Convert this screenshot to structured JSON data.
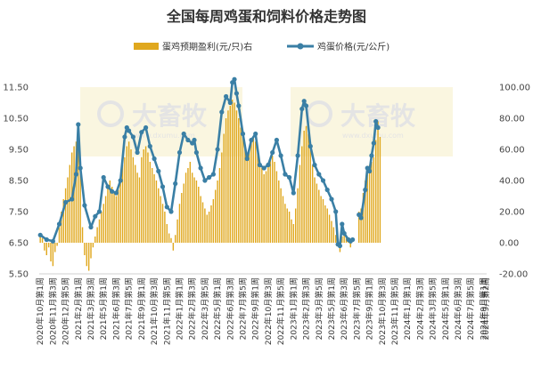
{
  "chart_data": {
    "type": "bar+line",
    "title": "全国每周鸡蛋和饲料价格走势图",
    "legend_position": "top",
    "watermark": "大畜牧 www.dxumu.com",
    "grid": false,
    "series": [
      {
        "name": "蛋鸡预期盈利(元/只)右",
        "type": "bar",
        "axis": "right",
        "color": "#E0A81E"
      },
      {
        "name": "鸡蛋价格(元/公斤)",
        "type": "line",
        "axis": "left",
        "color": "#3A7FA5"
      }
    ],
    "y_left": {
      "min": 5.5,
      "max": 11.5,
      "ticks": [
        "5.50",
        "6.50",
        "7.50",
        "8.50",
        "9.50",
        "10.50",
        "11.50"
      ]
    },
    "y_right": {
      "min": -20,
      "max": 100,
      "ticks": [
        "-20.00",
        "0.00",
        "20.00",
        "40.00",
        "60.00",
        "80.00",
        "100.00"
      ]
    },
    "x_tick_labels": [
      "2020年10月第1周",
      "2020年11月第3周",
      "2020年12月第5周",
      "2021年2月第1周",
      "2021年3月第3周",
      "2021年5月第1周",
      "2021年6月第3周",
      "2021年7月第5周",
      "2021年9月第1周",
      "2021年10月第3周",
      "2021年11月第5周",
      "2022年1月第1周",
      "2022年2月第3周",
      "2022年3月第5周",
      "2022年5月第1周",
      "2022年6月第3周",
      "2022年7月第5周",
      "2022年9月第1周",
      "2022年10月第3周",
      "2022年11月第5周",
      "2023年1月第1周",
      "2023年2月第3周",
      "2023年3月第5周",
      "2023年5月第1周",
      "2023年6月第3周",
      "2023年7月第5周",
      "2023年9月第1周",
      "2023年10月第3周",
      "2023年11月第5周",
      "2024年1月第1周",
      "2024年2月第3周",
      "2024年3月第5周",
      "2024年5月第1周",
      "2024年6月第3周",
      "2024年7月第5周",
      "2024年9月第1周",
      "2024年9月第2周"
    ],
    "x_tick_points": [
      0,
      6,
      12,
      18,
      24,
      30,
      36,
      42,
      48,
      54,
      60,
      66,
      72,
      78,
      84,
      90,
      96,
      102,
      108,
      114,
      120,
      126,
      132,
      138,
      144,
      150,
      156,
      162,
      168,
      174,
      180,
      186,
      192,
      198,
      204,
      210,
      211
    ],
    "egg_price": [
      [
        0,
        6.75
      ],
      [
        3,
        6.6
      ],
      [
        6,
        6.55
      ],
      [
        9,
        7.1
      ],
      [
        12,
        7.8
      ],
      [
        15,
        7.9
      ],
      [
        17,
        8.7
      ],
      [
        18,
        10.3
      ],
      [
        19,
        8.9
      ],
      [
        21,
        7.7
      ],
      [
        24,
        7.0
      ],
      [
        26,
        7.35
      ],
      [
        28,
        7.5
      ],
      [
        30,
        8.6
      ],
      [
        32,
        8.3
      ],
      [
        34,
        8.15
      ],
      [
        36,
        8.1
      ],
      [
        38,
        8.5
      ],
      [
        40,
        9.9
      ],
      [
        41,
        10.2
      ],
      [
        42,
        10.1
      ],
      [
        44,
        9.9
      ],
      [
        46,
        9.4
      ],
      [
        48,
        10.05
      ],
      [
        50,
        10.2
      ],
      [
        52,
        9.6
      ],
      [
        54,
        9.2
      ],
      [
        56,
        8.8
      ],
      [
        58,
        8.3
      ],
      [
        60,
        7.65
      ],
      [
        62,
        7.5
      ],
      [
        64,
        8.4
      ],
      [
        66,
        9.4
      ],
      [
        68,
        10.0
      ],
      [
        70,
        9.8
      ],
      [
        72,
        9.7
      ],
      [
        73,
        9.8
      ],
      [
        74,
        9.4
      ],
      [
        76,
        8.9
      ],
      [
        78,
        8.5
      ],
      [
        80,
        8.6
      ],
      [
        82,
        8.7
      ],
      [
        84,
        9.5
      ],
      [
        86,
        10.7
      ],
      [
        88,
        11.2
      ],
      [
        90,
        11.0
      ],
      [
        91,
        11.65
      ],
      [
        92,
        11.75
      ],
      [
        93,
        11.3
      ],
      [
        94,
        10.9
      ],
      [
        96,
        10.0
      ],
      [
        98,
        9.2
      ],
      [
        100,
        9.8
      ],
      [
        102,
        10.0
      ],
      [
        104,
        9.0
      ],
      [
        106,
        8.9
      ],
      [
        108,
        9.0
      ],
      [
        110,
        9.4
      ],
      [
        112,
        9.8
      ],
      [
        114,
        9.3
      ],
      [
        116,
        8.7
      ],
      [
        118,
        8.6
      ],
      [
        120,
        8.1
      ],
      [
        122,
        9.3
      ],
      [
        124,
        10.8
      ],
      [
        125,
        11.05
      ],
      [
        126,
        10.9
      ],
      [
        128,
        9.6
      ],
      [
        130,
        9.0
      ],
      [
        132,
        8.7
      ],
      [
        134,
        8.5
      ],
      [
        136,
        8.2
      ],
      [
        138,
        7.9
      ],
      [
        140,
        7.5
      ],
      [
        141,
        6.45
      ],
      [
        142,
        6.4
      ],
      [
        143,
        7.1
      ],
      [
        144,
        6.8
      ],
      [
        146,
        6.6
      ],
      [
        147,
        6.55
      ],
      [
        148,
        6.6
      ],
      [
        151,
        7.4
      ],
      [
        152,
        7.3
      ],
      [
        154,
        8.2
      ],
      [
        155,
        8.9
      ],
      [
        156,
        8.8
      ],
      [
        157,
        9.3
      ],
      [
        158,
        9.7
      ],
      [
        159,
        10.4
      ],
      [
        160,
        10.2
      ]
    ],
    "egg_price_breaks": [
      148
    ],
    "egg_price_markers_every": 2,
    "profit_bars": [
      [
        0,
        4
      ],
      [
        1,
        3
      ],
      [
        2,
        -5
      ],
      [
        3,
        -8
      ],
      [
        4,
        -3
      ],
      [
        5,
        -12
      ],
      [
        6,
        -15
      ],
      [
        7,
        -6
      ],
      [
        8,
        -2
      ],
      [
        9,
        10
      ],
      [
        10,
        20
      ],
      [
        11,
        28
      ],
      [
        12,
        35
      ],
      [
        13,
        42
      ],
      [
        14,
        50
      ],
      [
        15,
        58
      ],
      [
        16,
        62
      ],
      [
        17,
        65
      ],
      [
        18,
        60
      ],
      [
        19,
        45
      ],
      [
        20,
        10
      ],
      [
        21,
        -8
      ],
      [
        22,
        -15
      ],
      [
        23,
        -18
      ],
      [
        24,
        -10
      ],
      [
        25,
        -3
      ],
      [
        26,
        4
      ],
      [
        27,
        10
      ],
      [
        28,
        15
      ],
      [
        29,
        20
      ],
      [
        30,
        25
      ],
      [
        31,
        30
      ],
      [
        32,
        35
      ],
      [
        33,
        40
      ],
      [
        34,
        36
      ],
      [
        35,
        33
      ],
      [
        36,
        30
      ],
      [
        37,
        34
      ],
      [
        38,
        42
      ],
      [
        39,
        50
      ],
      [
        40,
        55
      ],
      [
        41,
        62
      ],
      [
        42,
        65
      ],
      [
        43,
        60
      ],
      [
        44,
        55
      ],
      [
        45,
        50
      ],
      [
        46,
        45
      ],
      [
        47,
        42
      ],
      [
        48,
        55
      ],
      [
        49,
        60
      ],
      [
        50,
        62
      ],
      [
        51,
        58
      ],
      [
        52,
        52
      ],
      [
        53,
        48
      ],
      [
        54,
        44
      ],
      [
        55,
        40
      ],
      [
        56,
        35
      ],
      [
        57,
        30
      ],
      [
        58,
        25
      ],
      [
        59,
        20
      ],
      [
        60,
        12
      ],
      [
        61,
        6
      ],
      [
        62,
        3
      ],
      [
        63,
        -5
      ],
      [
        64,
        5
      ],
      [
        65,
        15
      ],
      [
        66,
        25
      ],
      [
        67,
        32
      ],
      [
        68,
        38
      ],
      [
        69,
        45
      ],
      [
        70,
        48
      ],
      [
        71,
        52
      ],
      [
        72,
        45
      ],
      [
        73,
        42
      ],
      [
        74,
        40
      ],
      [
        75,
        36
      ],
      [
        76,
        30
      ],
      [
        77,
        26
      ],
      [
        78,
        22
      ],
      [
        79,
        18
      ],
      [
        80,
        20
      ],
      [
        81,
        24
      ],
      [
        82,
        28
      ],
      [
        83,
        34
      ],
      [
        84,
        40
      ],
      [
        85,
        48
      ],
      [
        86,
        58
      ],
      [
        87,
        70
      ],
      [
        88,
        80
      ],
      [
        89,
        85
      ],
      [
        90,
        88
      ],
      [
        91,
        92
      ],
      [
        92,
        90
      ],
      [
        93,
        85
      ],
      [
        94,
        80
      ],
      [
        95,
        74
      ],
      [
        96,
        68
      ],
      [
        97,
        60
      ],
      [
        98,
        55
      ],
      [
        99,
        60
      ],
      [
        100,
        66
      ],
      [
        101,
        68
      ],
      [
        102,
        65
      ],
      [
        103,
        58
      ],
      [
        104,
        52
      ],
      [
        105,
        48
      ],
      [
        106,
        44
      ],
      [
        107,
        46
      ],
      [
        108,
        50
      ],
      [
        109,
        54
      ],
      [
        110,
        56
      ],
      [
        111,
        52
      ],
      [
        112,
        46
      ],
      [
        113,
        40
      ],
      [
        114,
        35
      ],
      [
        115,
        30
      ],
      [
        116,
        25
      ],
      [
        117,
        22
      ],
      [
        118,
        20
      ],
      [
        119,
        15
      ],
      [
        120,
        12
      ],
      [
        121,
        22
      ],
      [
        122,
        35
      ],
      [
        123,
        50
      ],
      [
        124,
        62
      ],
      [
        125,
        72
      ],
      [
        126,
        75
      ],
      [
        127,
        70
      ],
      [
        128,
        60
      ],
      [
        129,
        50
      ],
      [
        130,
        42
      ],
      [
        131,
        38
      ],
      [
        132,
        34
      ],
      [
        133,
        30
      ],
      [
        134,
        28
      ],
      [
        135,
        24
      ],
      [
        136,
        22
      ],
      [
        137,
        18
      ],
      [
        138,
        14
      ],
      [
        139,
        10
      ],
      [
        140,
        5
      ],
      [
        141,
        -2
      ],
      [
        142,
        -6
      ],
      [
        143,
        4
      ],
      [
        144,
        6
      ],
      [
        145,
        4
      ],
      [
        146,
        2
      ],
      [
        147,
        -3
      ],
      [
        151,
        20
      ],
      [
        152,
        22
      ],
      [
        153,
        32
      ],
      [
        154,
        40
      ],
      [
        155,
        46
      ],
      [
        156,
        50
      ],
      [
        157,
        52
      ],
      [
        158,
        55
      ],
      [
        159,
        66
      ],
      [
        160,
        78
      ],
      [
        161,
        68
      ]
    ]
  }
}
